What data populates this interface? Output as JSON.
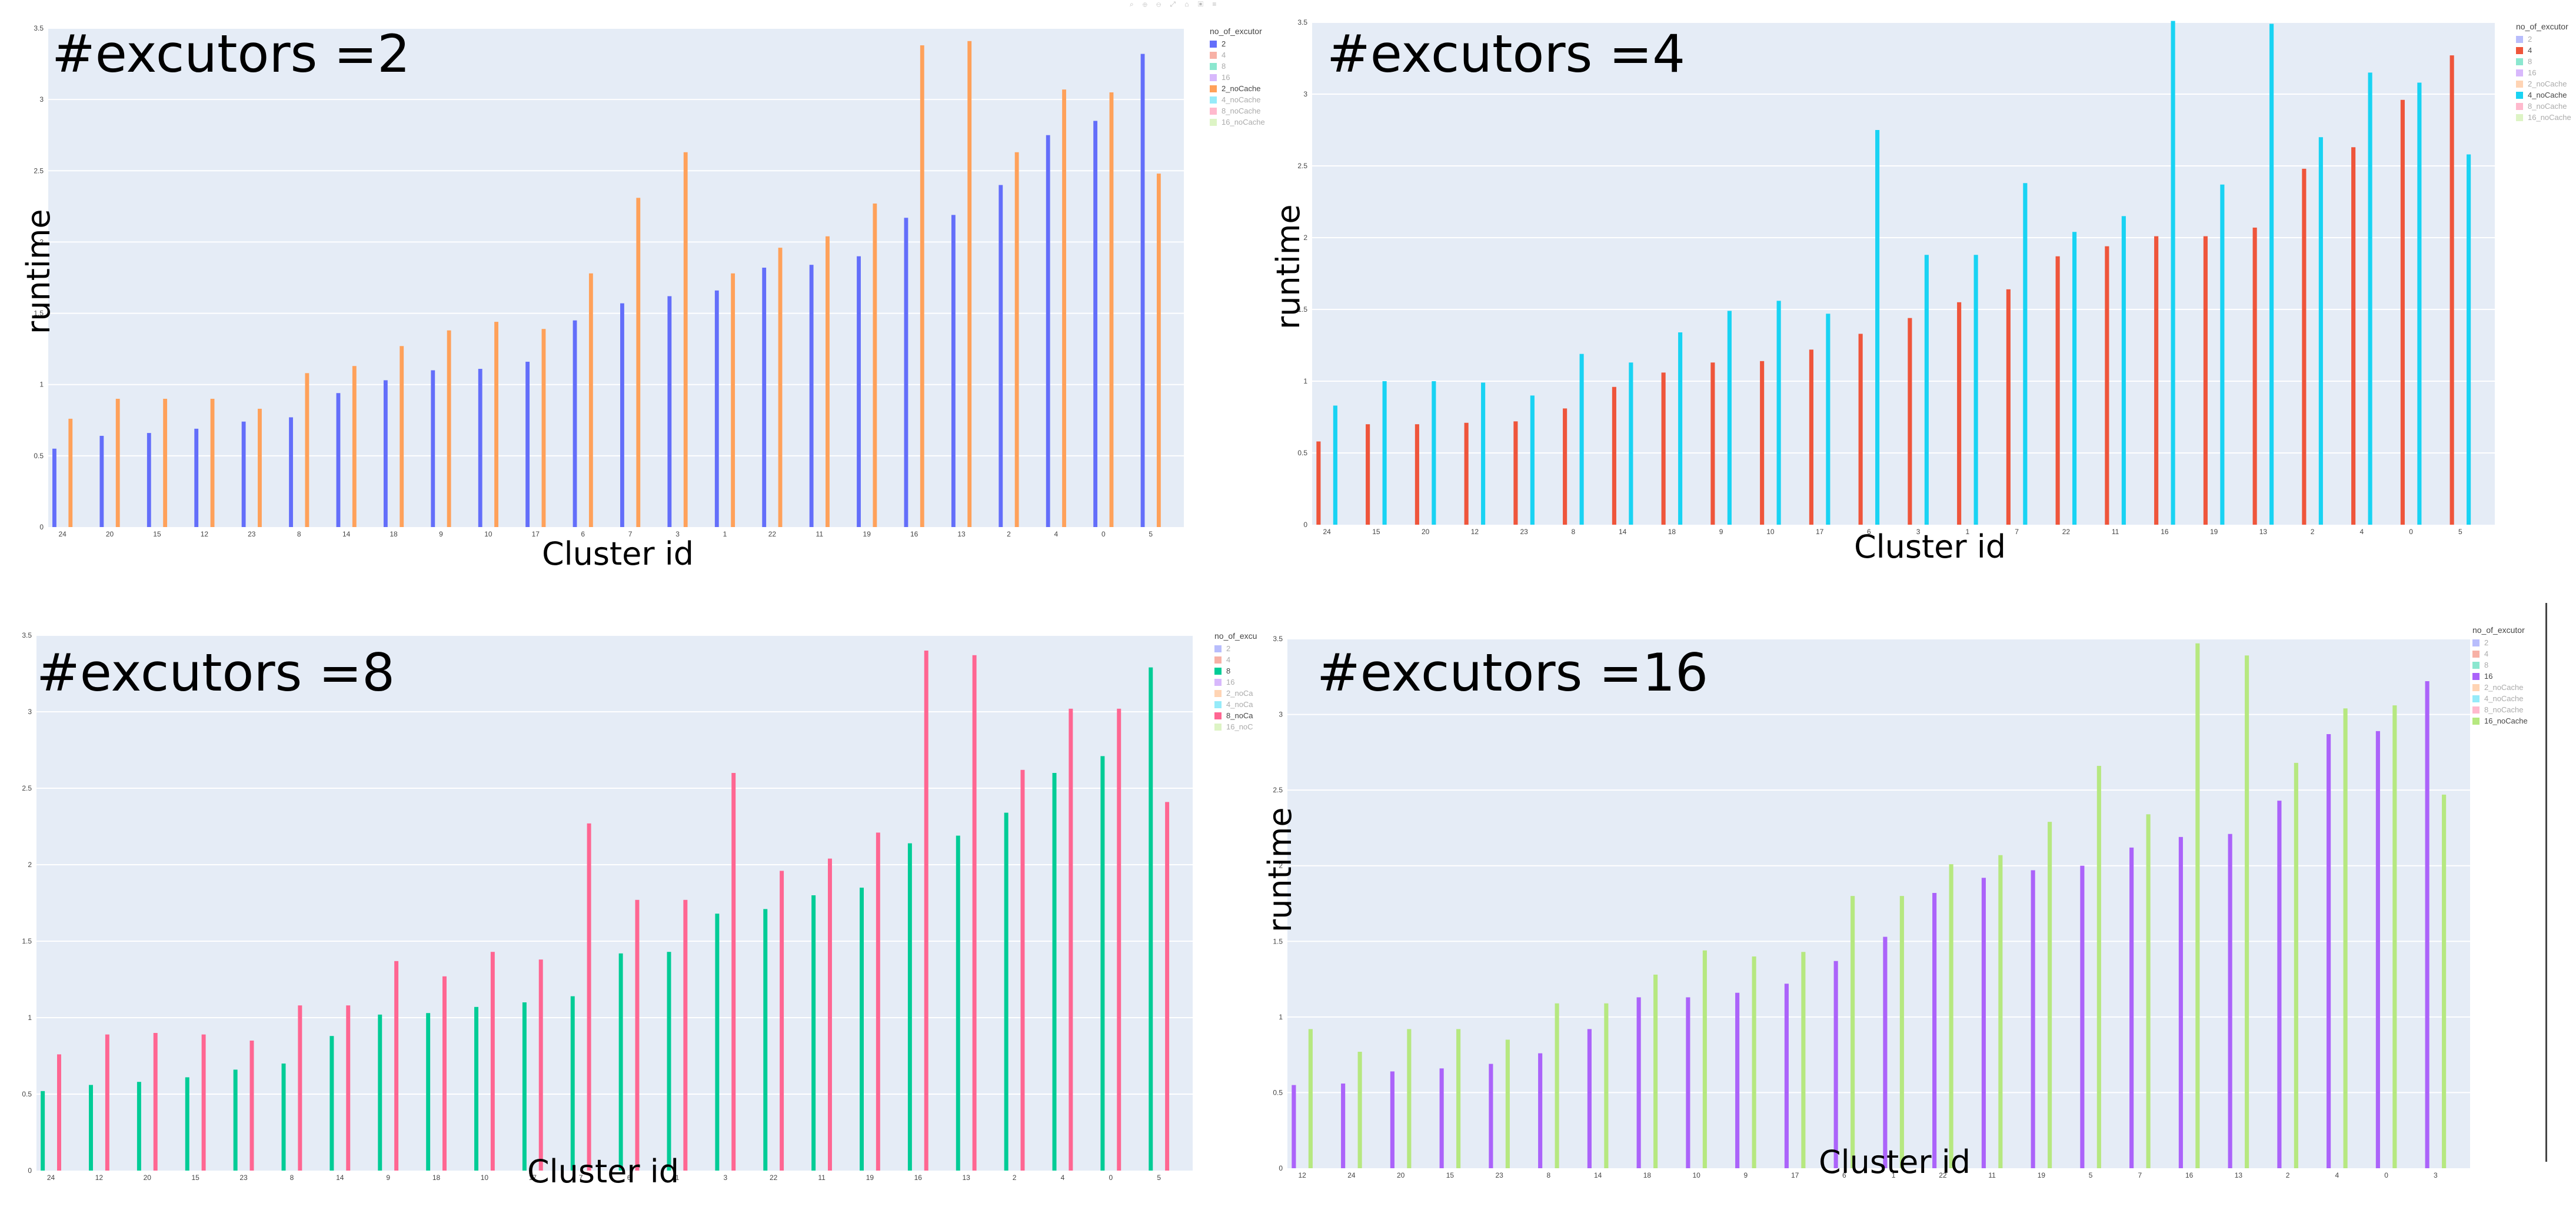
{
  "toolbar_icons": "⌕ ⊕ ⊖ ⤢ ⌂ ▣ ≡",
  "legend_title_full": "no_of_excutor",
  "legend_title_short": "no_of_excu",
  "charts": [
    {
      "id": "exec2",
      "annotation": "#excutors =2",
      "xlabel": "Cluster id",
      "ylabel": "runtime",
      "legend_title": "no_of_excutor",
      "legend_entries": [
        "2",
        "4",
        "8",
        "16",
        "2_noCache",
        "4_noCache",
        "8_noCache",
        "16_noCache"
      ],
      "legend_colors": [
        "#636efa",
        "#EF553B",
        "#00cc96",
        "#ab63fa",
        "#FFA15A",
        "#19d3f3",
        "#FF6692",
        "#B6E880"
      ],
      "legend_active": [
        0,
        4
      ],
      "show_ylabel": true
    },
    {
      "id": "exec4",
      "annotation": "#excutors =4",
      "xlabel": "Cluster id",
      "ylabel": "runtime",
      "legend_title": "no_of_excutor",
      "legend_entries": [
        "2",
        "4",
        "8",
        "16",
        "2_noCache",
        "4_noCache",
        "8_noCache",
        "16_noCache"
      ],
      "legend_colors": [
        "#636efa",
        "#EF553B",
        "#00cc96",
        "#ab63fa",
        "#FFA15A",
        "#19d3f3",
        "#FF6692",
        "#B6E880"
      ],
      "legend_active": [
        1,
        5
      ],
      "show_ylabel": true
    },
    {
      "id": "exec8",
      "annotation": "#excutors =8",
      "xlabel": "Cluster id",
      "ylabel": "",
      "legend_title": "no_of_excu",
      "legend_entries": [
        "2",
        "4",
        "8",
        "16",
        "2_noCa",
        "4_noCa",
        "8_noCa",
        "16_noC"
      ],
      "legend_colors": [
        "#636efa",
        "#EF553B",
        "#00cc96",
        "#ab63fa",
        "#FFA15A",
        "#19d3f3",
        "#FF6692",
        "#B6E880"
      ],
      "legend_active": [
        2,
        6
      ],
      "show_ylabel": false
    },
    {
      "id": "exec16",
      "annotation": "#excutors =16",
      "xlabel": "Cluster id",
      "ylabel": "runtime",
      "legend_title": "no_of_excutor",
      "legend_entries": [
        "2",
        "4",
        "8",
        "16",
        "2_noCache",
        "4_noCache",
        "8_noCache",
        "16_noCache"
      ],
      "legend_colors": [
        "#636efa",
        "#EF553B",
        "#00cc96",
        "#ab63fa",
        "#FFA15A",
        "#19d3f3",
        "#FF6692",
        "#B6E880"
      ],
      "legend_active": [
        3,
        7
      ],
      "show_ylabel": true
    }
  ],
  "chart_data": [
    {
      "type": "bar",
      "title": "#excutors =2",
      "xlabel": "Cluster id",
      "ylabel": "runtime",
      "ylim": [
        0,
        3.5
      ],
      "yticks": [
        "0",
        "0.5",
        "1",
        "1.5",
        "2",
        "2.5",
        "3",
        "3.5"
      ],
      "categories": [
        "24",
        "20",
        "15",
        "12",
        "23",
        "8",
        "14",
        "18",
        "9",
        "10",
        "17",
        "6",
        "7",
        "3",
        "1",
        "22",
        "11",
        "19",
        "16",
        "13",
        "2",
        "4",
        "0",
        "5"
      ],
      "series": [
        {
          "name": "2",
          "color": "#636efa",
          "values": [
            0.55,
            0.64,
            0.66,
            0.69,
            0.74,
            0.77,
            0.94,
            1.03,
            1.1,
            1.11,
            1.16,
            1.45,
            1.57,
            1.62,
            1.66,
            1.82,
            1.84,
            1.9,
            2.17,
            2.19,
            2.4,
            2.75,
            2.85,
            3.32
          ]
        },
        {
          "name": "2_noCache",
          "color": "#FFA15A",
          "values": [
            0.76,
            0.9,
            0.9,
            0.9,
            0.83,
            1.08,
            1.13,
            1.27,
            1.38,
            1.44,
            1.39,
            1.78,
            2.31,
            2.63,
            1.78,
            1.96,
            2.04,
            2.27,
            3.38,
            3.41,
            2.63,
            3.07,
            3.05,
            2.48
          ]
        }
      ],
      "grid": true,
      "legend": "right"
    },
    {
      "type": "bar",
      "title": "#excutors =4",
      "xlabel": "Cluster id",
      "ylabel": "runtime",
      "ylim": [
        0,
        3.5
      ],
      "yticks": [
        "0",
        "0.5",
        "1",
        "1.5",
        "2",
        "2.5",
        "3",
        "3.5"
      ],
      "categories": [
        "24",
        "15",
        "20",
        "12",
        "23",
        "8",
        "14",
        "18",
        "9",
        "10",
        "17",
        "6",
        "3",
        "1",
        "7",
        "22",
        "11",
        "16",
        "19",
        "13",
        "2",
        "4",
        "0",
        "5"
      ],
      "series": [
        {
          "name": "4",
          "color": "#EF553B",
          "values": [
            0.58,
            0.7,
            0.7,
            0.71,
            0.72,
            0.81,
            0.96,
            1.06,
            1.13,
            1.14,
            1.22,
            1.33,
            1.44,
            1.55,
            1.64,
            1.87,
            1.94,
            2.01,
            2.01,
            2.07,
            2.48,
            2.63,
            2.96,
            3.27
          ]
        },
        {
          "name": "4_noCache",
          "color": "#19d3f3",
          "values": [
            0.83,
            1.0,
            1.0,
            0.99,
            0.9,
            1.19,
            1.13,
            1.34,
            1.49,
            1.56,
            1.47,
            2.75,
            1.88,
            1.88,
            2.38,
            2.04,
            2.15,
            3.51,
            2.37,
            3.49,
            2.7,
            3.15,
            3.08,
            2.58
          ]
        }
      ],
      "grid": true,
      "legend": "right"
    },
    {
      "type": "bar",
      "title": "#excutors =8",
      "xlabel": "Cluster id",
      "ylabel": "",
      "ylim": [
        0,
        3.5
      ],
      "yticks": [
        "0",
        "0.5",
        "1",
        "1.5",
        "2",
        "2.5",
        "3",
        "3.5"
      ],
      "categories": [
        "24",
        "12",
        "20",
        "15",
        "23",
        "8",
        "14",
        "9",
        "18",
        "10",
        "17",
        "7",
        "6",
        "1",
        "3",
        "22",
        "11",
        "19",
        "16",
        "13",
        "2",
        "4",
        "0",
        "5"
      ],
      "series": [
        {
          "name": "8",
          "color": "#00cc96",
          "values": [
            0.52,
            0.56,
            0.58,
            0.61,
            0.66,
            0.7,
            0.88,
            1.02,
            1.03,
            1.07,
            1.1,
            1.14,
            1.42,
            1.43,
            1.68,
            1.71,
            1.8,
            1.85,
            2.14,
            2.19,
            2.34,
            2.6,
            2.71,
            3.29
          ]
        },
        {
          "name": "8_noCache",
          "color": "#FF6692",
          "values": [
            0.76,
            0.89,
            0.9,
            0.89,
            0.85,
            1.08,
            1.08,
            1.37,
            1.27,
            1.43,
            1.38,
            2.27,
            1.77,
            1.77,
            2.6,
            1.96,
            2.04,
            2.21,
            3.4,
            3.37,
            2.62,
            3.02,
            3.02,
            2.41
          ]
        }
      ],
      "grid": true,
      "legend": "right"
    },
    {
      "type": "bar",
      "title": "#excutors =16",
      "xlabel": "Cluster id",
      "ylabel": "runtime",
      "ylim": [
        0,
        3.5
      ],
      "yticks": [
        "0",
        "0.5",
        "1",
        "1.5",
        "2",
        "2.5",
        "3",
        "3.5"
      ],
      "categories": [
        "12",
        "24",
        "20",
        "15",
        "23",
        "8",
        "14",
        "18",
        "10",
        "9",
        "17",
        "6",
        "1",
        "22",
        "11",
        "19",
        "5",
        "7",
        "16",
        "13",
        "2",
        "4",
        "0",
        "3"
      ],
      "series": [
        {
          "name": "16",
          "color": "#ab63fa",
          "values": [
            0.55,
            0.56,
            0.64,
            0.66,
            0.69,
            0.76,
            0.92,
            1.13,
            1.13,
            1.16,
            1.22,
            1.37,
            1.53,
            1.82,
            1.92,
            1.97,
            2.0,
            2.12,
            2.19,
            2.21,
            2.43,
            2.87,
            2.89,
            3.22
          ]
        },
        {
          "name": "16_noCache",
          "color": "#B6E880",
          "values": [
            0.92,
            0.77,
            0.92,
            0.92,
            0.85,
            1.09,
            1.09,
            1.28,
            1.44,
            1.4,
            1.43,
            1.8,
            1.8,
            2.01,
            2.07,
            2.29,
            2.66,
            2.34,
            3.47,
            3.39,
            2.68,
            3.04,
            3.06,
            2.47
          ]
        }
      ],
      "grid": true,
      "legend": "right"
    }
  ]
}
